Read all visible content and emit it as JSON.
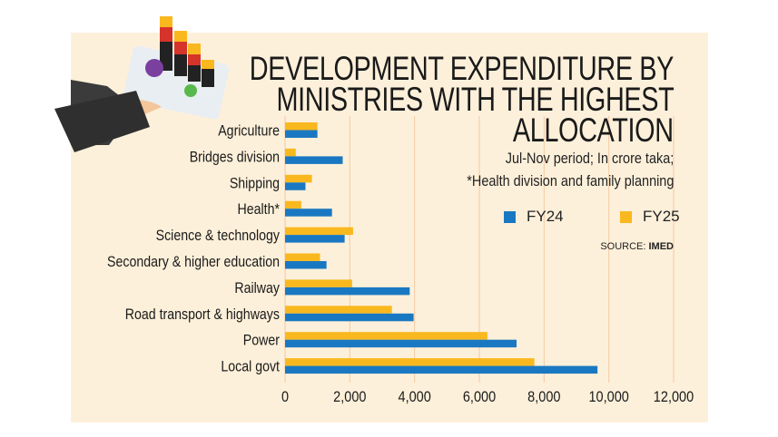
{
  "chart_data": {
    "type": "bar",
    "orientation": "horizontal",
    "title": "DEVELOPMENT EXPENDITURE BY MINISTRIES WITH THE HIGHEST ALLOCATION",
    "title_lines": [
      "DEVELOPMENT EXPENDITURE BY",
      "MINISTRIES WITH THE HIGHEST",
      "ALLOCATION"
    ],
    "subtitle_lines": [
      "Jul-Nov period; In crore taka;",
      "*Health division and family planning"
    ],
    "source_label": "SOURCE:",
    "source_name": "IMED",
    "categories": [
      "Agriculture",
      "Bridges division",
      "Shipping",
      "Health*",
      "Science & technology",
      "Secondary & higher education",
      "Railway",
      "Road transport & highways",
      "Power",
      "Local govt"
    ],
    "series": [
      {
        "name": "FY24",
        "color": "#1a78c2",
        "values": [
          1000,
          1780,
          630,
          1450,
          1840,
          1280,
          3850,
          3970,
          7150,
          9650
        ]
      },
      {
        "name": "FY25",
        "color": "#f9b81e",
        "values": [
          1000,
          330,
          830,
          500,
          2100,
          1080,
          2070,
          3300,
          6250,
          7700
        ]
      }
    ],
    "xlim": [
      0,
      12000
    ],
    "xticks": [
      "0",
      "2,000",
      "4,000",
      "6,000",
      "8,000",
      "10,000",
      "12,000"
    ],
    "xtick_values": [
      0,
      2000,
      4000,
      6000,
      8000,
      10000,
      12000
    ],
    "grid": "vertical",
    "gridline_color": "#f2c9a4",
    "legend_position": "right"
  }
}
